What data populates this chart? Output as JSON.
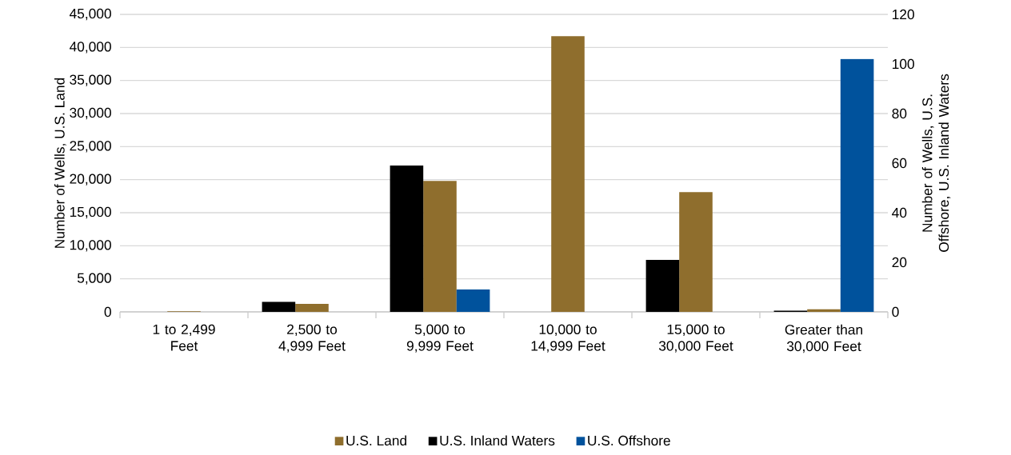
{
  "chart_data": {
    "type": "bar",
    "categories": [
      "1 to 2,499 Feet",
      "2,500 to 4,999 Feet",
      "5,000 to 9,999 Feet",
      "10,000 to 14,999 Feet",
      "15,000 to 30,000 Feet",
      "Greater than 30,000 Feet"
    ],
    "ylabel": "Number of Wells, U.S. Land",
    "y2label": "Number of Wells, U.S. Offshore, U.S. Inland Waters",
    "ylim": [
      0,
      45000
    ],
    "yticks": [
      0,
      {
        "value": 5000,
        "label": "5,000"
      },
      {
        "value": 10000,
        "label": "10,000"
      },
      {
        "value": 15000,
        "label": "15,000"
      },
      {
        "value": 20000,
        "label": "20,000"
      },
      {
        "value": 25000,
        "label": "25,000"
      },
      {
        "value": 30000,
        "label": "30,000"
      },
      {
        "value": 35000,
        "label": "35,000"
      },
      {
        "value": 40000,
        "label": "40,000"
      },
      {
        "value": 45000,
        "label": "45,000"
      }
    ],
    "y2lim": [
      0,
      120
    ],
    "y2ticks": [
      0,
      20,
      40,
      60,
      80,
      100,
      120
    ],
    "grid": "y",
    "legend": "bottom",
    "series": [
      {
        "name": "U.S. Land",
        "color": "#8f6e2d",
        "values": [
          100,
          1200,
          19800,
          41700,
          18100,
          400
        ]
      },
      {
        "name": "U.S. Inland Waters",
        "color": "#000000",
        "axis": "y2",
        "values": [
          0,
          4,
          59,
          0,
          21,
          0.5
        ]
      },
      {
        "name": "U.S. Offshore",
        "color": "#00529c",
        "axis": "y2",
        "values": [
          0,
          0,
          9,
          0,
          0,
          102
        ]
      }
    ]
  }
}
